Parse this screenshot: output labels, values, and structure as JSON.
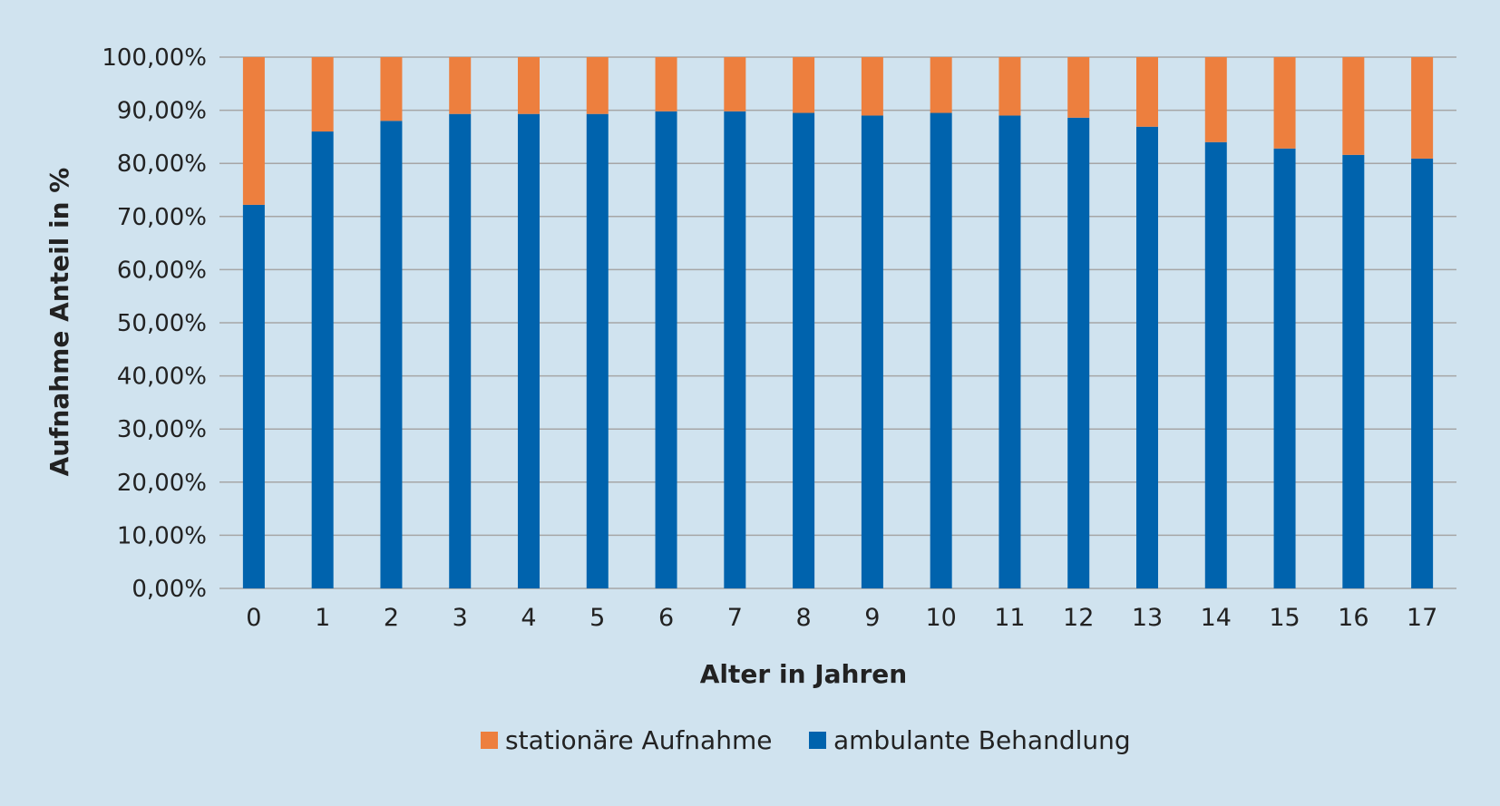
{
  "chart_data": {
    "type": "bar",
    "stacked": true,
    "title": "",
    "xlabel": "Alter in Jahren",
    "ylabel": "Aufnahme Anteil in %",
    "categories": [
      "0",
      "1",
      "2",
      "3",
      "4",
      "5",
      "6",
      "7",
      "8",
      "9",
      "10",
      "11",
      "12",
      "13",
      "14",
      "15",
      "16",
      "17"
    ],
    "ylim": [
      0,
      100
    ],
    "y_ticks": [
      "0,00%",
      "10,00%",
      "20,00%",
      "30,00%",
      "40,00%",
      "50,00%",
      "60,00%",
      "70,00%",
      "80,00%",
      "90,00%",
      "100,00%"
    ],
    "grid": true,
    "legend_position": "bottom",
    "series": [
      {
        "name": "ambulante Behandlung",
        "color": "#0063ad",
        "values": [
          72.2,
          86.0,
          88.0,
          89.3,
          89.3,
          89.3,
          89.8,
          89.8,
          89.5,
          89.0,
          89.5,
          89.0,
          88.6,
          86.9,
          84.0,
          82.8,
          81.6,
          80.9
        ]
      },
      {
        "name": "stationäre Aufnahme",
        "color": "#ed7f3e",
        "values": [
          27.8,
          14.0,
          12.0,
          10.7,
          10.7,
          10.7,
          10.2,
          10.2,
          10.5,
          11.0,
          10.5,
          11.0,
          11.4,
          13.1,
          16.0,
          17.2,
          18.4,
          19.1
        ]
      }
    ],
    "legend_order": [
      "stationäre Aufnahme",
      "ambulante Behandlung"
    ],
    "gridline_color": "#a6a6a6",
    "background_color": "#d0e3ef"
  }
}
